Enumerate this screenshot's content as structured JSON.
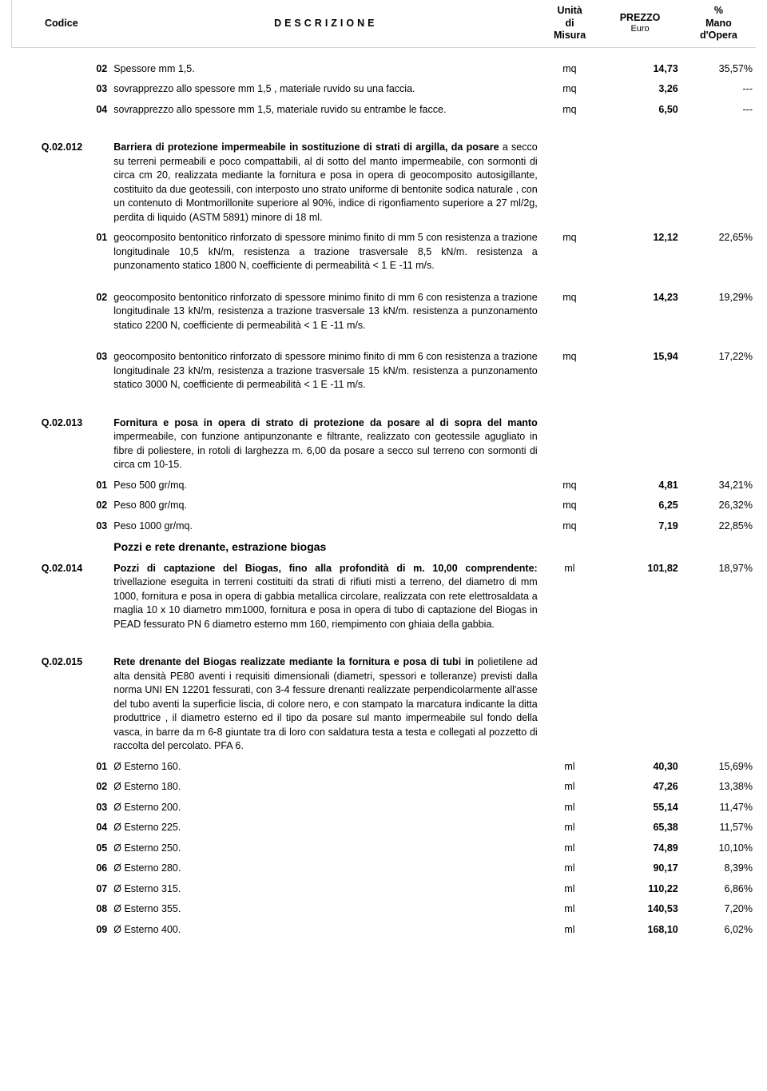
{
  "header": {
    "code": "Codice",
    "description": "DESCRIZIONE",
    "unit_line1": "Unità",
    "unit_line2": "di",
    "unit_line3": "Misura",
    "price_line1": "PREZZO",
    "price_line2": "Euro",
    "pct_line1": "%",
    "pct_line2": "Mano",
    "pct_line3": "d'Opera"
  },
  "preRows": [
    {
      "sub": "02",
      "desc": "Spessore mm 1,5.",
      "unit": "mq",
      "price": "14,73",
      "pct": "35,57%"
    },
    {
      "sub": "03",
      "desc": "sovrapprezzo allo spessore mm 1,5 , materiale ruvido su una faccia.",
      "unit": "mq",
      "price": "3,26",
      "pct": "---"
    },
    {
      "sub": "04",
      "desc": "sovrapprezzo allo spessore mm 1,5, materiale ruvido su entrambe le facce.",
      "unit": "mq",
      "price": "6,50",
      "pct": "---"
    }
  ],
  "g012": {
    "code": "Q.02.012",
    "lead": "Barriera di protezione impermeabile in sostituzione di strati di argilla, da posare",
    "body": "a secco su terreni permeabili e poco compattabili, al di sotto del manto impermeabile, con sormonti di circa cm 20, realizzata mediante la fornitura e posa in opera di geocomposito autosigillante, costituito da due geotessili, con interposto uno strato uniforme di bentonite sodica naturale , con un contenuto di Montmorillonite superiore al 90%, indice di rigonfiamento superiore a 27 ml/2g,  perdita di liquido (ASTM 5891) minore di 18 ml.",
    "items": [
      {
        "sub": "01",
        "desc": "geocomposito bentonitico rinforzato di spessore minimo finito di mm 5 con resistenza a trazione longitudinale 10,5 kN/m, resistenza a trazione trasversale 8,5 kN/m. resistenza a punzonamento statico 1800 N, coefficiente di permeabilità < 1 E -11 m/s.",
        "unit": "mq",
        "price": "12,12",
        "pct": "22,65%"
      },
      {
        "sub": "02",
        "desc": "geocomposito bentonitico  rinforzato  di spessore minimo finito di mm 6  con resistenza a trazione longitudinale 13 kN/m, resistenza a trazione trasversale 13 kN/m. resistenza a punzonamento statico 2200 N, coefficiente di permeabilità < 1 E -11 m/s.",
        "unit": "mq",
        "price": "14,23",
        "pct": "19,29%"
      },
      {
        "sub": "03",
        "desc": "geocomposito bentonitico rinforzato  di spessore minimo finito di mm 6  con resistenza a trazione longitudinale 23 kN/m, resistenza a trazione trasversale 15 kN/m. resistenza a punzonamento statico 3000 N, coefficiente di permeabilità < 1 E -11 m/s.",
        "unit": "mq",
        "price": "15,94",
        "pct": "17,22%"
      }
    ]
  },
  "g013": {
    "code": "Q.02.013",
    "lead": "Fornitura e posa in opera di strato di protezione da posare al di sopra del manto",
    "body": "impermeabile, con funzione antipunzonante e filtrante, realizzato con geotessile agugliato in fibre di poliestere, in rotoli di larghezza m. 6,00 da posare a secco sul terreno con sormonti di circa cm 10-15.",
    "items": [
      {
        "sub": "01",
        "desc": "Peso 500 gr/mq.",
        "unit": "mq",
        "price": "4,81",
        "pct": "34,21%"
      },
      {
        "sub": "02",
        "desc": "Peso 800 gr/mq.",
        "unit": "mq",
        "price": "6,25",
        "pct": "26,32%"
      },
      {
        "sub": "03",
        "desc": "Peso 1000 gr/mq.",
        "unit": "mq",
        "price": "7,19",
        "pct": "22,85%"
      }
    ]
  },
  "sectionTitle": "Pozzi e rete drenante, estrazione biogas",
  "g014": {
    "code": "Q.02.014",
    "lead": "Pozzi di captazione del Biogas, fino alla profondità di m. 10,00 comprendente:",
    "body": "trivellazione eseguita in terreni costituiti da strati di rifiuti misti a terreno, del diametro di mm 1000, fornitura e posa in opera di gabbia metallica circolare, realizzata con rete elettrosaldata a maglia 10 x 10 diametro mm1000,  fornitura e posa in opera di tubo di captazione del Biogas in PEAD fessurato PN 6 diametro esterno mm 160, riempimento con ghiaia della gabbia.",
    "unit": "ml",
    "price": "101,82",
    "pct": "18,97%"
  },
  "g015": {
    "code": "Q.02.015",
    "lead": "Rete drenante del Biogas  realizzate mediante la fornitura e posa di tubi in",
    "body": "polietilene ad alta densità PE80 aventi i requisiti dimensionali (diametri, spessori e tolleranze) previsti dalla  norma UNI EN 12201  fessurati, con 3-4  fessure drenanti realizzate perpendicolarmente all'asse del tubo aventi la superficie liscia, di colore nero, e con stampato la marcatura indicante la ditta produttrice , il diametro esterno ed il tipo da posare sul manto impermeabile sul fondo della vasca, in barre da m 6-8 giuntate tra di loro con  saldatura testa a testa e collegati al pozzetto di raccolta del percolato. PFA 6.",
    "items": [
      {
        "sub": "01",
        "desc": "Ø Esterno 160.",
        "unit": "ml",
        "price": "40,30",
        "pct": "15,69%"
      },
      {
        "sub": "02",
        "desc": "Ø Esterno 180.",
        "unit": "ml",
        "price": "47,26",
        "pct": "13,38%"
      },
      {
        "sub": "03",
        "desc": "Ø Esterno 200.",
        "unit": "ml",
        "price": "55,14",
        "pct": "11,47%"
      },
      {
        "sub": "04",
        "desc": "Ø Esterno 225.",
        "unit": "ml",
        "price": "65,38",
        "pct": "11,57%"
      },
      {
        "sub": "05",
        "desc": "Ø Esterno 250.",
        "unit": "ml",
        "price": "74,89",
        "pct": "10,10%"
      },
      {
        "sub": "06",
        "desc": "Ø Esterno 280.",
        "unit": "ml",
        "price": "90,17",
        "pct": "8,39%"
      },
      {
        "sub": "07",
        "desc": "Ø Esterno 315.",
        "unit": "ml",
        "price": "110,22",
        "pct": "6,86%"
      },
      {
        "sub": "08",
        "desc": "Ø Esterno 355.",
        "unit": "ml",
        "price": "140,53",
        "pct": "7,20%"
      },
      {
        "sub": "09",
        "desc": "Ø Esterno 400.",
        "unit": "ml",
        "price": "168,10",
        "pct": "6,02%"
      }
    ]
  },
  "style": {
    "colWidths": {
      "code": 90,
      "sub": 30,
      "desc": 520,
      "unit": 70,
      "price": 100,
      "pct": 90
    },
    "fontFamily": "Verdana",
    "fontSize": 12.5,
    "borderColor": "#d3d3d3",
    "textColor": "#000000",
    "bg": "#ffffff"
  }
}
